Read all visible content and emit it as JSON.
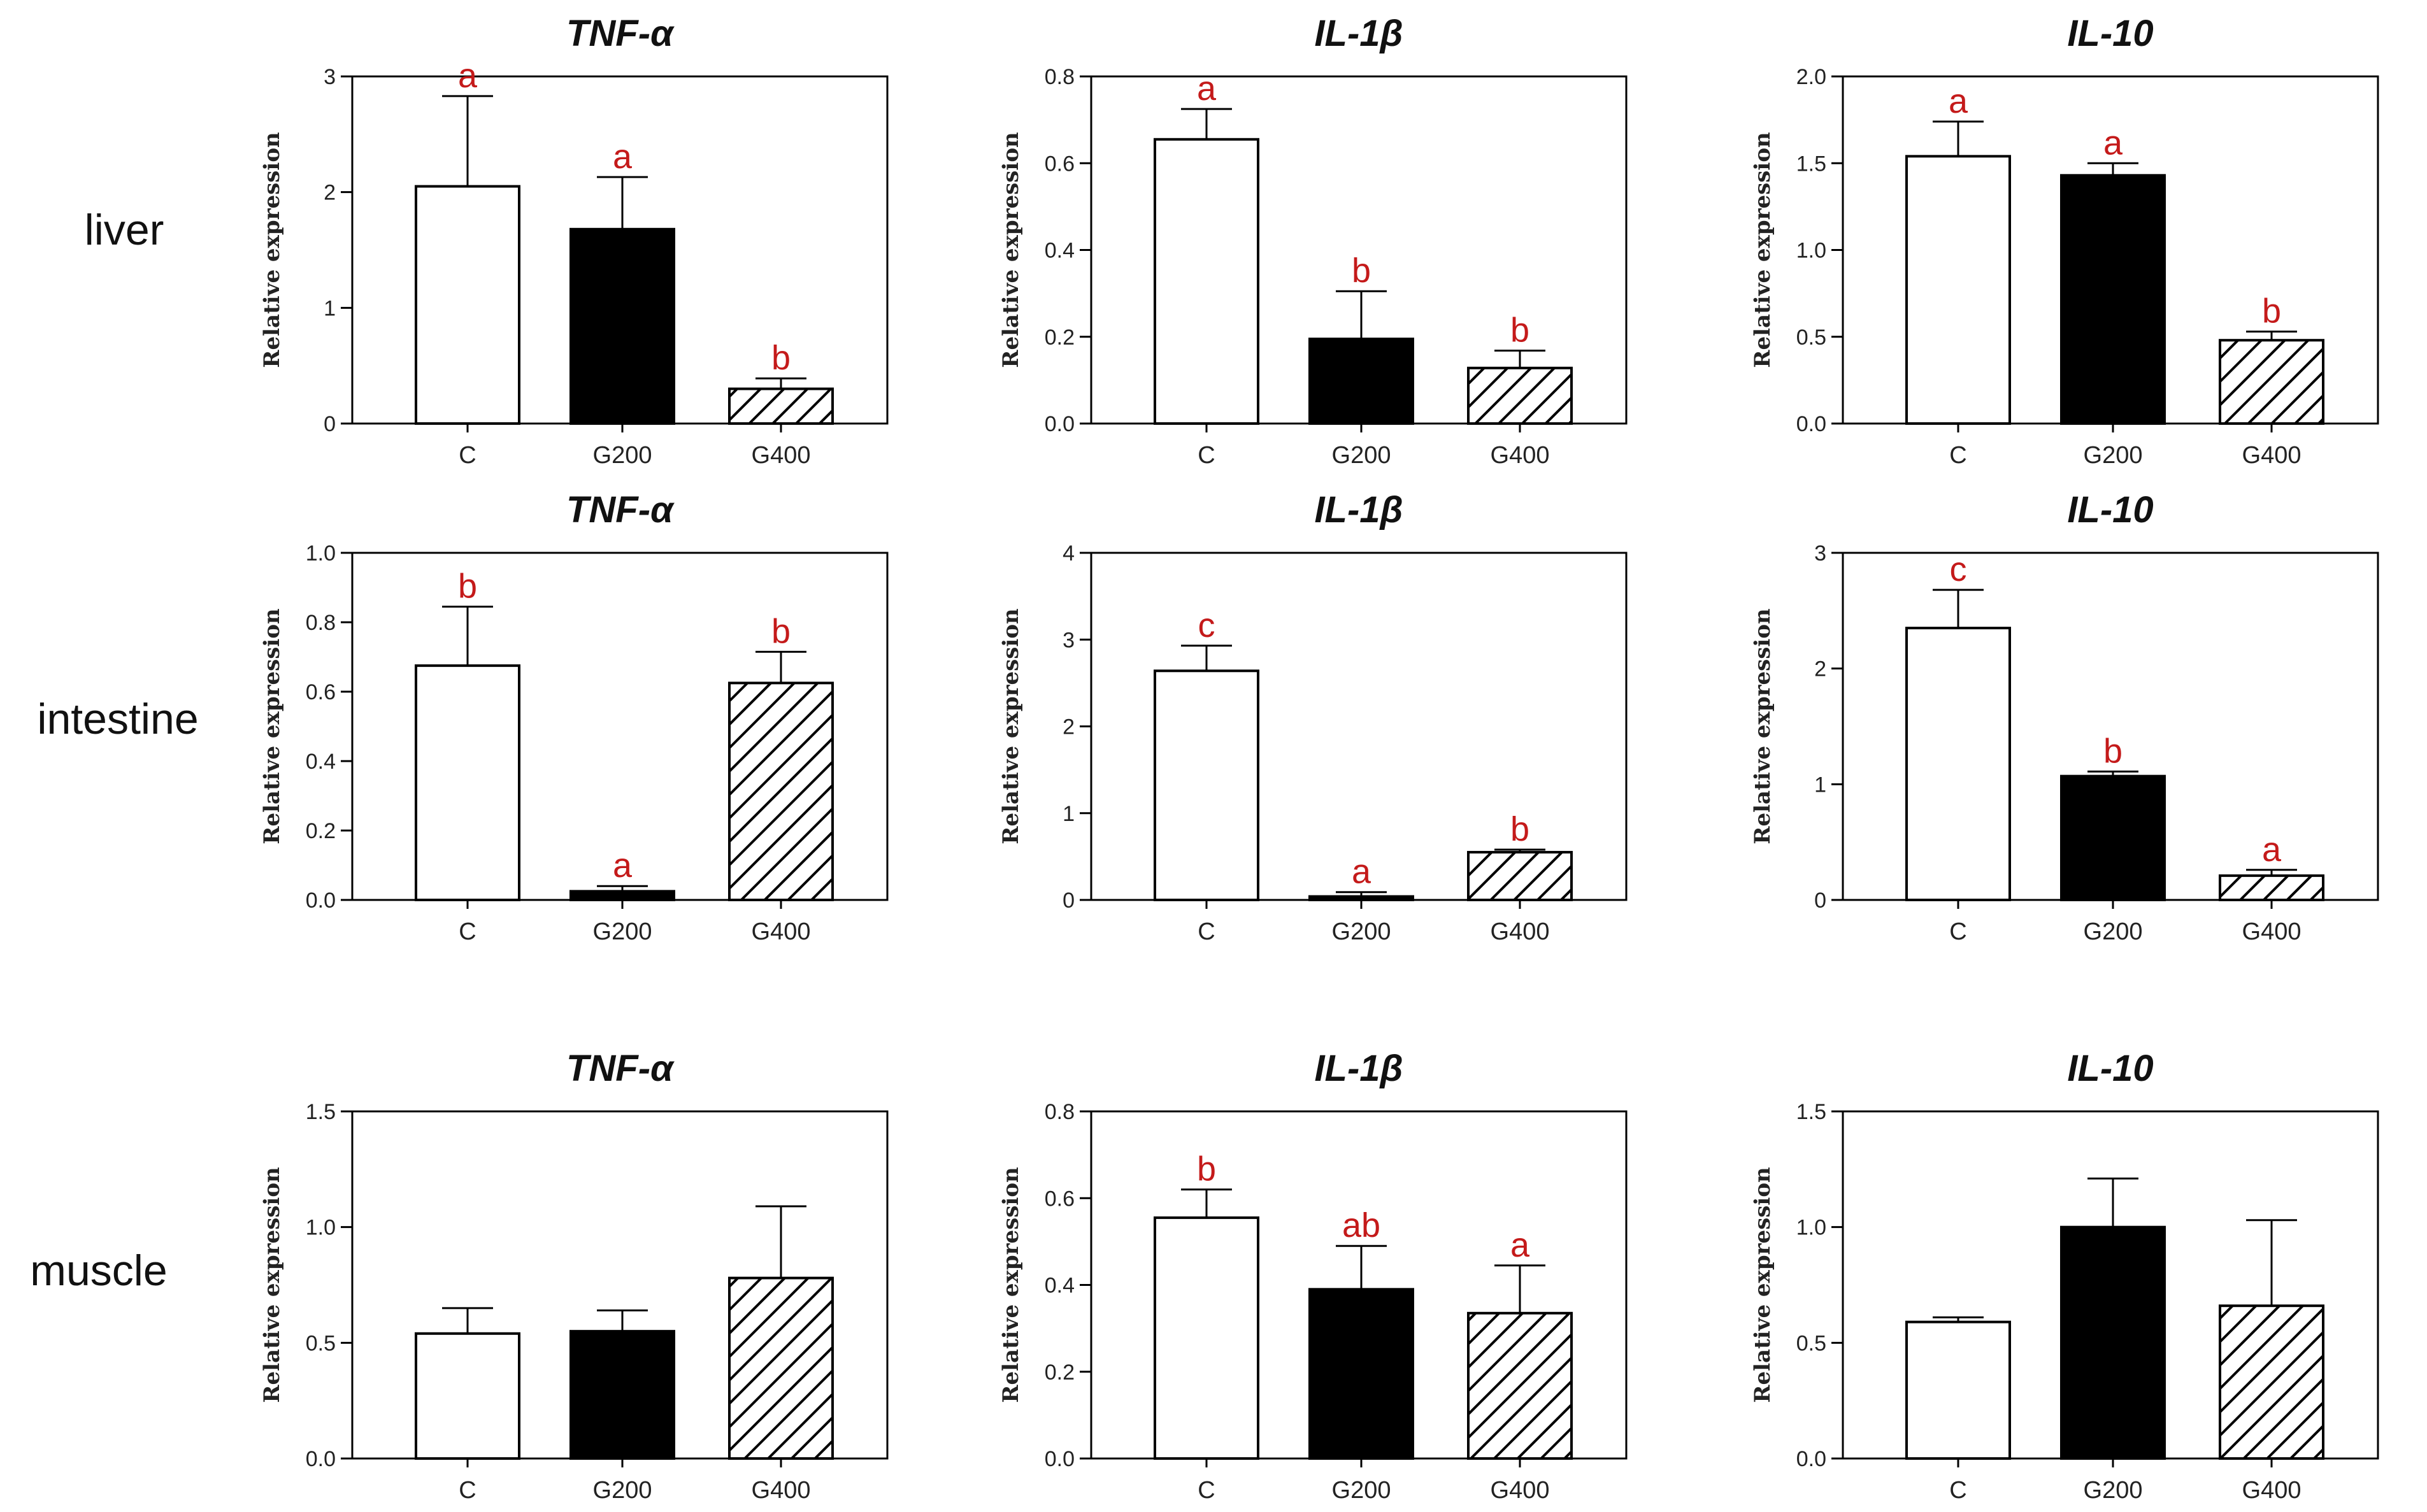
{
  "row_labels": [
    "liver",
    "intestine",
    "muscle"
  ],
  "colors": {
    "significance": "#c41a1a",
    "bar_edge": "#000000",
    "G200_fill": "#000000",
    "C_fill": "#ffffff"
  },
  "chart_data": [
    {
      "type": "bar",
      "row": 0,
      "col": 0,
      "title": "TNF-α",
      "ylabel": "Relative expression",
      "categories": [
        "C",
        "G200",
        "G400"
      ],
      "values": [
        2.05,
        1.68,
        0.3
      ],
      "errors": [
        0.78,
        0.45,
        0.09
      ],
      "ylim": [
        0,
        3
      ],
      "yticks": [
        0,
        1,
        2,
        3
      ],
      "ytick_labels": [
        "0",
        "1",
        "2",
        "3"
      ],
      "significance": [
        "a",
        "a",
        "b"
      ],
      "fills": [
        "white",
        "black",
        "hatch"
      ]
    },
    {
      "type": "bar",
      "row": 0,
      "col": 1,
      "title": "IL-1β",
      "ylabel": "Relative expression",
      "categories": [
        "C",
        "G200",
        "G400"
      ],
      "values": [
        0.655,
        0.195,
        0.128
      ],
      "errors": [
        0.07,
        0.11,
        0.04
      ],
      "ylim": [
        0,
        0.8
      ],
      "yticks": [
        0,
        0.2,
        0.4,
        0.6,
        0.8
      ],
      "ytick_labels": [
        "0.0",
        "0.2",
        "0.4",
        "0.6",
        "0.8"
      ],
      "significance": [
        "a",
        "b",
        "b"
      ],
      "fills": [
        "white",
        "black",
        "hatch"
      ]
    },
    {
      "type": "bar",
      "row": 0,
      "col": 2,
      "title": "IL-10",
      "ylabel": "Relative expression",
      "categories": [
        "C",
        "G200",
        "G400"
      ],
      "values": [
        1.54,
        1.43,
        0.48
      ],
      "errors": [
        0.2,
        0.07,
        0.05
      ],
      "ylim": [
        0,
        2.0
      ],
      "yticks": [
        0,
        0.5,
        1.0,
        1.5,
        2.0
      ],
      "ytick_labels": [
        "0.0",
        "0.5",
        "1.0",
        "1.5",
        "2.0"
      ],
      "significance": [
        "a",
        "a",
        "b"
      ],
      "fills": [
        "white",
        "black",
        "hatch"
      ]
    },
    {
      "type": "bar",
      "row": 1,
      "col": 0,
      "title": "TNF-α",
      "ylabel": "Relative expression",
      "categories": [
        "C",
        "G200",
        "G400"
      ],
      "values": [
        0.675,
        0.025,
        0.625
      ],
      "errors": [
        0.17,
        0.015,
        0.09
      ],
      "ylim": [
        0,
        1.0
      ],
      "yticks": [
        0,
        0.2,
        0.4,
        0.6,
        0.8,
        1.0
      ],
      "ytick_labels": [
        "0.0",
        "0.2",
        "0.4",
        "0.6",
        "0.8",
        "1.0"
      ],
      "significance": [
        "b",
        "a",
        "b"
      ],
      "fills": [
        "white",
        "black",
        "hatch"
      ]
    },
    {
      "type": "bar",
      "row": 1,
      "col": 1,
      "title": "IL-1β",
      "ylabel": "Relative expression",
      "categories": [
        "C",
        "G200",
        "G400"
      ],
      "values": [
        2.64,
        0.04,
        0.55
      ],
      "errors": [
        0.29,
        0.05,
        0.03
      ],
      "ylim": [
        0,
        4
      ],
      "yticks": [
        0,
        1,
        2,
        3,
        4
      ],
      "ytick_labels": [
        "0",
        "1",
        "2",
        "3",
        "4"
      ],
      "significance": [
        "c",
        "a",
        "b"
      ],
      "fills": [
        "white",
        "black",
        "hatch"
      ]
    },
    {
      "type": "bar",
      "row": 1,
      "col": 2,
      "title": "IL-10",
      "ylabel": "Relative expression",
      "categories": [
        "C",
        "G200",
        "G400"
      ],
      "values": [
        2.35,
        1.07,
        0.21
      ],
      "errors": [
        0.33,
        0.04,
        0.05
      ],
      "ylim": [
        0,
        3
      ],
      "yticks": [
        0,
        1,
        2,
        3
      ],
      "ytick_labels": [
        "0",
        "1",
        "2",
        "3"
      ],
      "significance": [
        "c",
        "b",
        "a"
      ],
      "fills": [
        "white",
        "black",
        "hatch"
      ]
    },
    {
      "type": "bar",
      "row": 2,
      "col": 0,
      "title": "TNF-α",
      "ylabel": "Relative expression",
      "categories": [
        "C",
        "G200",
        "G400"
      ],
      "values": [
        0.54,
        0.55,
        0.78
      ],
      "errors": [
        0.11,
        0.09,
        0.31
      ],
      "ylim": [
        0,
        1.5
      ],
      "yticks": [
        0,
        0.5,
        1.0,
        1.5
      ],
      "ytick_labels": [
        "0.0",
        "0.5",
        "1.0",
        "1.5"
      ],
      "significance": [
        "",
        "",
        ""
      ],
      "fills": [
        "white",
        "black",
        "hatch"
      ]
    },
    {
      "type": "bar",
      "row": 2,
      "col": 1,
      "title": "IL-1β",
      "ylabel": "Relative expression",
      "categories": [
        "C",
        "G200",
        "G400"
      ],
      "values": [
        0.555,
        0.39,
        0.335
      ],
      "errors": [
        0.065,
        0.1,
        0.11
      ],
      "ylim": [
        0,
        0.8
      ],
      "yticks": [
        0,
        0.2,
        0.4,
        0.6,
        0.8
      ],
      "ytick_labels": [
        "0.0",
        "0.2",
        "0.4",
        "0.6",
        "0.8"
      ],
      "significance": [
        "b",
        "ab",
        "a"
      ],
      "fills": [
        "white",
        "black",
        "hatch"
      ]
    },
    {
      "type": "bar",
      "row": 2,
      "col": 2,
      "title": "IL-10",
      "ylabel": "Relative expression",
      "categories": [
        "C",
        "G200",
        "G400"
      ],
      "values": [
        0.59,
        1.0,
        0.66
      ],
      "errors": [
        0.02,
        0.21,
        0.37
      ],
      "ylim": [
        0,
        1.5
      ],
      "yticks": [
        0,
        0.5,
        1.0,
        1.5
      ],
      "ytick_labels": [
        "0.0",
        "0.5",
        "1.0",
        "1.5"
      ],
      "significance": [
        "",
        "",
        ""
      ],
      "fills": [
        "white",
        "black",
        "hatch"
      ]
    }
  ]
}
